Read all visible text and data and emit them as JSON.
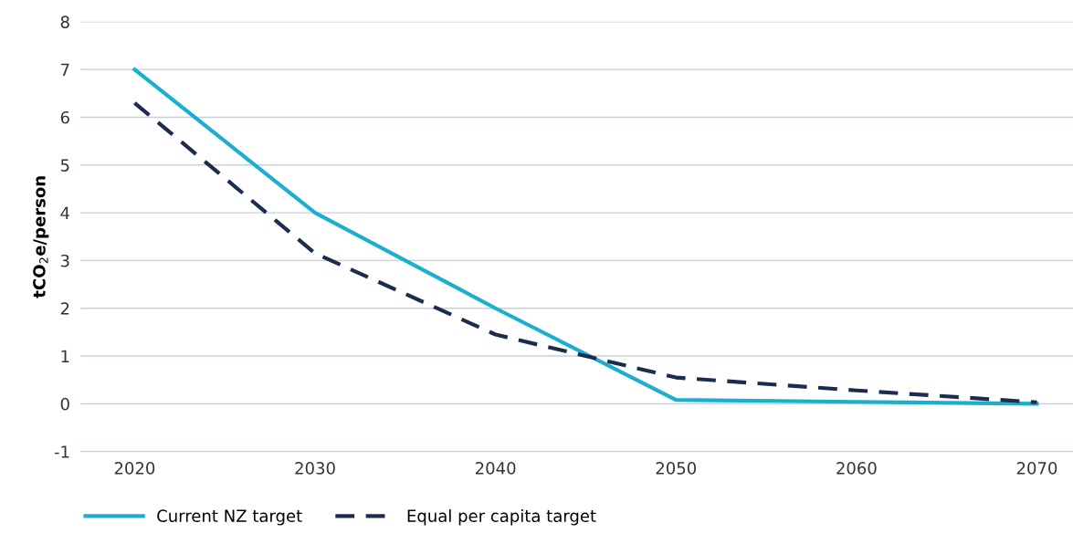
{
  "chart_data": {
    "type": "line",
    "ylabel": "tCO$_{2}$e/person",
    "x": [
      2020,
      2030,
      2040,
      2050,
      2060,
      2070
    ],
    "series": [
      {
        "name": "Current NZ target",
        "color": "#1aafcf",
        "values": [
          7,
          4,
          2,
          0.08,
          0.04,
          0
        ],
        "line_style": "solid"
      },
      {
        "name": "Equal per capita target",
        "color": "#1b2d4f",
        "values": [
          6.3,
          3.15,
          1.45,
          0.55,
          0.28,
          0.03
        ],
        "line_style": "dashed"
      }
    ],
    "xlim": [
      2017,
      2072
    ],
    "xticks": [
      2020,
      2030,
      2040,
      2050,
      2060,
      2070
    ],
    "ylim": [
      -1,
      8
    ],
    "yticks": [
      -1,
      0,
      1,
      2,
      3,
      4,
      5,
      6,
      7,
      8
    ],
    "grid": "y",
    "legend": "bottom left",
    "marker": "none"
  }
}
